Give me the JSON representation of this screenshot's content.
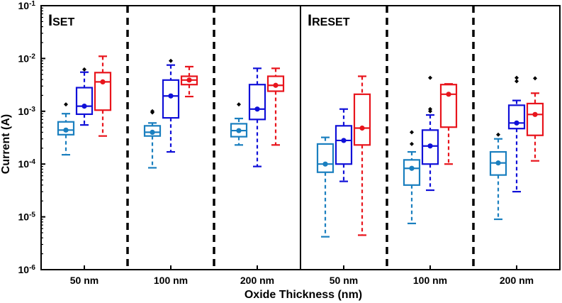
{
  "chart_data": {
    "type": "box",
    "ylabel": "Current (A)",
    "xlabel": "Oxide Thickness (nm)",
    "yscale": "log",
    "ylim": [
      1e-06,
      0.1
    ],
    "ytick_labels": [
      {
        "base": "10",
        "exp": "-6"
      },
      {
        "base": "10",
        "exp": "-5"
      },
      {
        "base": "10",
        "exp": "-4"
      },
      {
        "base": "10",
        "exp": "-3"
      },
      {
        "base": "10",
        "exp": "-2"
      },
      {
        "base": "10",
        "exp": "-1"
      }
    ],
    "series_colors": [
      "#1a7fbf",
      "#1010d8",
      "#e8141c"
    ],
    "panels": [
      {
        "label_main": "I",
        "label_sub": "SET",
        "groups": [
          {
            "label": "50 nm",
            "boxes": [
              {
                "whisker_low": 0.00015,
                "q1": 0.00036,
                "median": 0.00044,
                "q3": 0.00063,
                "whisker_high": 0.0009,
                "mean": 0.00044,
                "outliers": [
                  0.00135
                ]
              },
              {
                "whisker_low": 0.00055,
                "q1": 0.00088,
                "median": 0.00125,
                "q3": 0.0028,
                "whisker_high": 0.0055,
                "mean": 0.00125,
                "outliers": [
                  0.0062
                ]
              },
              {
                "whisker_low": 0.00034,
                "q1": 0.00105,
                "median": 0.0036,
                "q3": 0.0054,
                "whisker_high": 0.011,
                "mean": 0.0036,
                "outliers": []
              }
            ]
          },
          {
            "label": "100 nm",
            "boxes": [
              {
                "whisker_low": 8.5e-05,
                "q1": 0.00034,
                "median": 0.0004,
                "q3": 0.00053,
                "whisker_high": 0.0006,
                "mean": 0.0004,
                "outliers": [
                  0.00095,
                  0.001
                ]
              },
              {
                "whisker_low": 0.00017,
                "q1": 0.00075,
                "median": 0.00195,
                "q3": 0.0039,
                "whisker_high": 0.0075,
                "mean": 0.00195,
                "outliers": [
                  0.009
                ]
              },
              {
                "whisker_low": 0.0019,
                "q1": 0.0032,
                "median": 0.0039,
                "q3": 0.0046,
                "whisker_high": 0.007,
                "mean": 0.0039,
                "outliers": []
              }
            ]
          },
          {
            "label": "200 nm",
            "boxes": [
              {
                "whisker_low": 0.00023,
                "q1": 0.00033,
                "median": 0.00043,
                "q3": 0.00058,
                "whisker_high": 0.00073,
                "mean": 0.00043,
                "outliers": [
                  0.00135
                ]
              },
              {
                "whisker_low": 9e-05,
                "q1": 0.0007,
                "median": 0.0011,
                "q3": 0.0032,
                "whisker_high": 0.0065,
                "mean": 0.0011,
                "outliers": []
              },
              {
                "whisker_low": 0.00023,
                "q1": 0.0024,
                "median": 0.0031,
                "q3": 0.0046,
                "whisker_high": 0.0065,
                "mean": 0.0031,
                "outliers": []
              }
            ]
          }
        ]
      },
      {
        "label_main": "I",
        "label_sub": "RESET",
        "groups": [
          {
            "label": "50 nm",
            "boxes": [
              {
                "whisker_low": 4.2e-06,
                "q1": 7e-05,
                "median": 0.0001,
                "q3": 0.00024,
                "whisker_high": 0.00032,
                "mean": 0.0001,
                "outliers": []
              },
              {
                "whisker_low": 4.7e-05,
                "q1": 0.0001,
                "median": 0.00028,
                "q3": 0.00053,
                "whisker_high": 0.0011,
                "mean": 0.00028,
                "outliers": []
              },
              {
                "whisker_low": 4.5e-06,
                "q1": 0.00023,
                "median": 0.00048,
                "q3": 0.0021,
                "whisker_high": 0.0046,
                "mean": 0.00048,
                "outliers": []
              }
            ]
          },
          {
            "label": "100 nm",
            "boxes": [
              {
                "whisker_low": 7.5e-06,
                "q1": 4e-05,
                "median": 8.3e-05,
                "q3": 0.00012,
                "whisker_high": 0.00017,
                "mean": 8.3e-05,
                "outliers": [
                  0.00024,
                  0.0004
                ]
              },
              {
                "whisker_low": 3.2e-05,
                "q1": 0.0001,
                "median": 0.00022,
                "q3": 0.00044,
                "whisker_high": 0.00085,
                "mean": 0.00022,
                "outliers": [
                  0.001,
                  0.0011,
                  0.0043
                ]
              },
              {
                "whisker_low": 0.0001,
                "q1": 0.0005,
                "median": 0.0021,
                "q3": 0.0032,
                "whisker_high": 0.0033,
                "mean": 0.0021,
                "outliers": []
              }
            ]
          },
          {
            "label": "200 nm",
            "boxes": [
              {
                "whisker_low": 9e-06,
                "q1": 6.2e-05,
                "median": 0.000105,
                "q3": 0.00017,
                "whisker_high": 0.0003,
                "mean": 0.000105,
                "outliers": [
                  0.00036
                ]
              },
              {
                "whisker_low": 3e-05,
                "q1": 0.00047,
                "median": 0.0006,
                "q3": 0.0013,
                "whisker_high": 0.0016,
                "mean": 0.0006,
                "outliers": [
                  0.0037,
                  0.0043
                ]
              },
              {
                "whisker_low": 0.000115,
                "q1": 0.00035,
                "median": 0.00087,
                "q3": 0.0014,
                "whisker_high": 0.0022,
                "mean": 0.00087,
                "outliers": [
                  0.0042
                ]
              }
            ]
          }
        ]
      }
    ]
  }
}
